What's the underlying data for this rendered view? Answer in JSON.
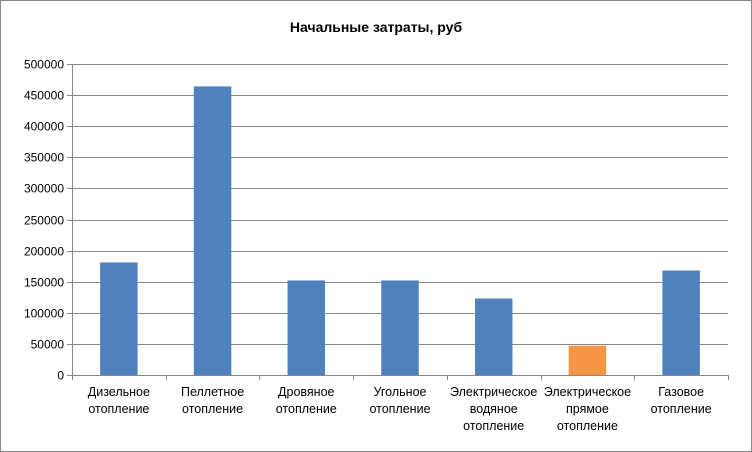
{
  "chart_data": {
    "type": "bar",
    "title": "Начальные затраты, руб",
    "xlabel": "",
    "ylabel": "",
    "ylim": [
      0,
      500000
    ],
    "yticks": [
      0,
      50000,
      100000,
      150000,
      200000,
      250000,
      300000,
      350000,
      400000,
      450000,
      500000
    ],
    "grid": true,
    "legend": "none",
    "categories": [
      [
        "Дизельное",
        "отопление"
      ],
      [
        "Пеллетное",
        "отопление"
      ],
      [
        "Дровяное",
        "отопление"
      ],
      [
        "Угольное",
        "отопление"
      ],
      [
        "Электрическое",
        "водяное",
        "отопление"
      ],
      [
        "Электрическое",
        "прямое",
        "отопление"
      ],
      [
        "Газовое",
        "отопление"
      ]
    ],
    "values": [
      181000,
      464000,
      152000,
      152000,
      123000,
      47000,
      168000
    ],
    "bar_colors": [
      "#4f81bd",
      "#4f81bd",
      "#4f81bd",
      "#4f81bd",
      "#4f81bd",
      "#f79646",
      "#4f81bd"
    ]
  }
}
